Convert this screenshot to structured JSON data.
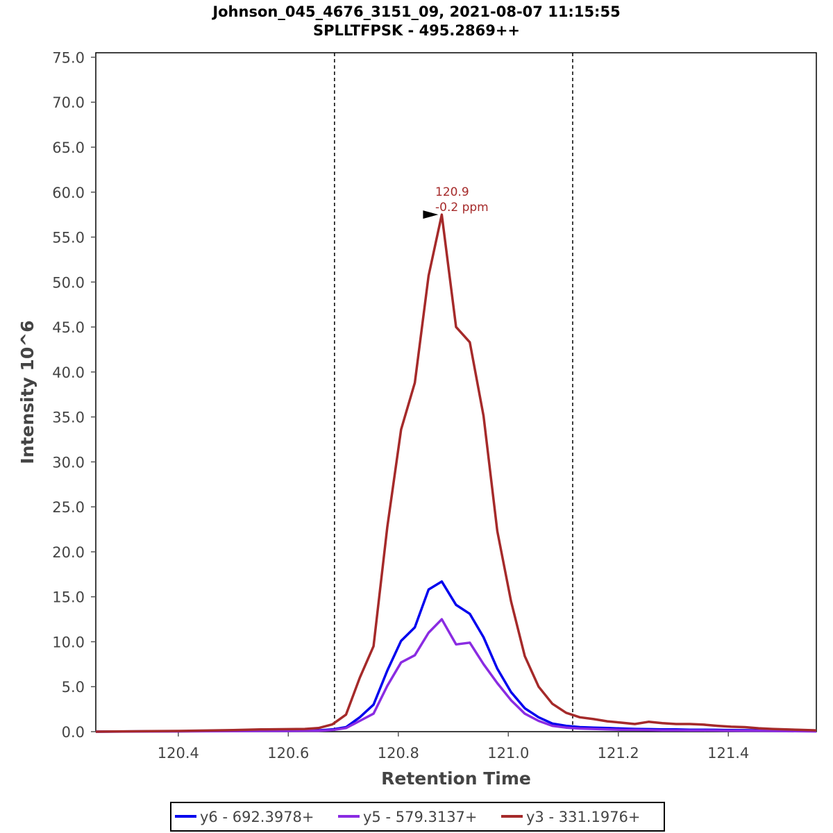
{
  "chart_data": {
    "type": "line",
    "title": "Johnson_045_4676_3151_09, 2021-08-07 11:15:55",
    "subtitle": "SPLLTFPSK - 495.2869++",
    "xlabel": "Retention Time",
    "ylabel": "Intensity 10^6",
    "xlim": [
      120.25,
      121.56
    ],
    "ylim": [
      0,
      75.5
    ],
    "xticks": [
      120.4,
      120.6,
      120.8,
      121.0,
      121.2,
      121.4
    ],
    "xtick_labels": [
      "120.4",
      "120.6",
      "120.8",
      "121.0",
      "121.2",
      "121.4"
    ],
    "yticks": [
      0,
      5,
      10,
      15,
      20,
      25,
      30,
      35,
      40,
      45,
      50,
      55,
      60,
      65,
      70,
      75
    ],
    "ytick_labels": [
      "0.0",
      "5.0",
      "10.0",
      "15.0",
      "20.0",
      "25.0",
      "30.0",
      "35.0",
      "40.0",
      "45.0",
      "50.0",
      "55.0",
      "60.0",
      "65.0",
      "70.0",
      "75.0"
    ],
    "grid": false,
    "boundaries": [
      120.684,
      121.117
    ],
    "annotation": {
      "x": 120.879,
      "y": 57.5,
      "line1": "120.9",
      "line2": "-0.2 ppm",
      "color": "#a52a2a"
    },
    "x": [
      120.25,
      120.3,
      120.35,
      120.4,
      120.45,
      120.5,
      120.55,
      120.6,
      120.63,
      120.655,
      120.68,
      120.705,
      120.73,
      120.755,
      120.78,
      120.805,
      120.83,
      120.855,
      120.879,
      120.905,
      120.93,
      120.955,
      120.98,
      121.005,
      121.03,
      121.055,
      121.08,
      121.105,
      121.13,
      121.155,
      121.18,
      121.205,
      121.23,
      121.255,
      121.28,
      121.305,
      121.33,
      121.355,
      121.38,
      121.405,
      121.43,
      121.455,
      121.48,
      121.505,
      121.53,
      121.56
    ],
    "series": [
      {
        "name": "y6 - 692.3978+",
        "color": "#0000ee",
        "values": [
          0.0,
          0.02,
          0.04,
          0.05,
          0.07,
          0.1,
          0.12,
          0.12,
          0.13,
          0.15,
          0.25,
          0.5,
          1.6,
          3.0,
          6.8,
          10.1,
          11.6,
          15.8,
          16.7,
          14.1,
          13.1,
          10.5,
          7.0,
          4.4,
          2.6,
          1.6,
          0.9,
          0.65,
          0.5,
          0.45,
          0.4,
          0.35,
          0.3,
          0.28,
          0.25,
          0.25,
          0.22,
          0.22,
          0.2,
          0.18,
          0.16,
          0.15,
          0.12,
          0.1,
          0.08,
          0.05
        ]
      },
      {
        "name": "y5 - 579.3137+",
        "color": "#8a2be2",
        "values": [
          0.0,
          0.01,
          0.02,
          0.03,
          0.05,
          0.06,
          0.08,
          0.08,
          0.09,
          0.1,
          0.18,
          0.4,
          1.2,
          2.0,
          5.1,
          7.7,
          8.5,
          11.0,
          12.5,
          9.7,
          9.9,
          7.5,
          5.4,
          3.5,
          2.0,
          1.2,
          0.65,
          0.45,
          0.35,
          0.3,
          0.25,
          0.22,
          0.2,
          0.18,
          0.15,
          0.15,
          0.14,
          0.13,
          0.12,
          0.11,
          0.1,
          0.09,
          0.08,
          0.06,
          0.05,
          0.03
        ]
      },
      {
        "name": "y3 - 331.1976+",
        "color": "#a52a2a",
        "values": [
          0.0,
          0.03,
          0.06,
          0.08,
          0.12,
          0.18,
          0.25,
          0.28,
          0.3,
          0.4,
          0.8,
          1.9,
          6.0,
          9.5,
          22.8,
          33.6,
          38.8,
          50.7,
          57.5,
          45.0,
          43.3,
          35.1,
          22.3,
          14.5,
          8.4,
          5.0,
          3.1,
          2.1,
          1.6,
          1.4,
          1.15,
          1.0,
          0.85,
          1.1,
          0.95,
          0.85,
          0.85,
          0.78,
          0.65,
          0.55,
          0.5,
          0.38,
          0.3,
          0.25,
          0.2,
          0.15
        ]
      }
    ]
  }
}
